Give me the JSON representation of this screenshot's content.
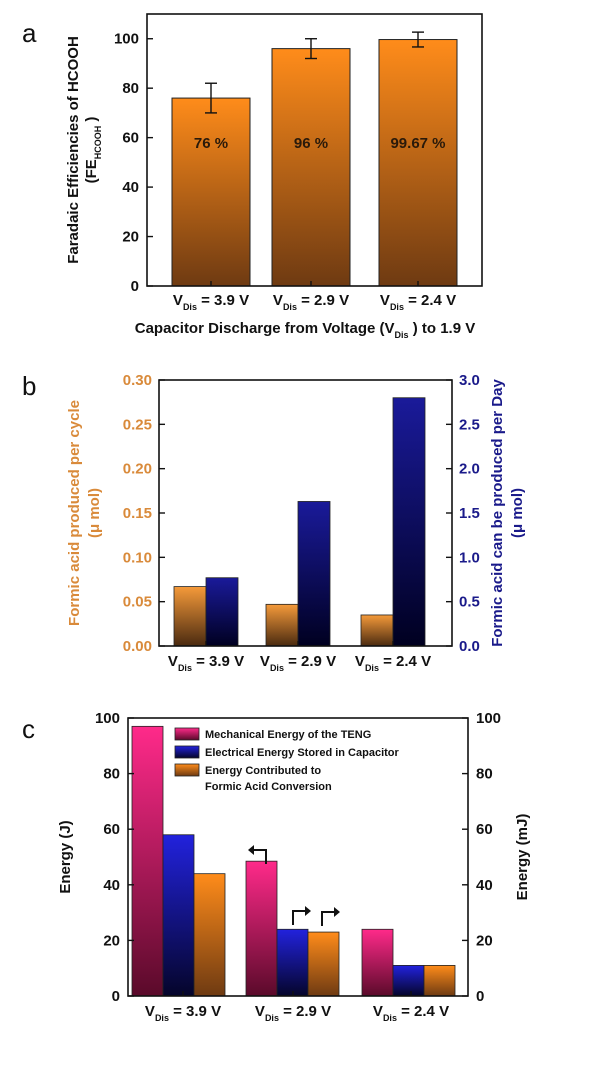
{
  "chart_data": [
    {
      "panel": "a",
      "type": "bar",
      "categories": [
        {
          "main": "V",
          "sub": "Dis",
          "rest": "= 3.9 V"
        },
        {
          "main": "V",
          "sub": "Dis",
          "rest": "= 2.9 V"
        },
        {
          "main": "V",
          "sub": "Dis",
          "rest": "= 2.4 V"
        }
      ],
      "values": [
        76,
        96,
        99.67
      ],
      "errors": [
        6,
        4,
        3
      ],
      "data_labels": [
        "76 %",
        "96 %",
        "99.67 %"
      ],
      "ylabel": "Faradaic Efficiencies of HCOOH",
      "ylabel2": {
        "main": "(FE",
        "sub": "HCOOH",
        "rest": ")"
      },
      "xlabel": {
        "main": "Capacitor Discharge from Voltage (V",
        "sub": "Dis",
        "rest": ") to 1.9 V"
      },
      "ylim": [
        0,
        110
      ],
      "yticks": [
        0,
        20,
        40,
        60,
        80,
        100
      ],
      "colors": {
        "top": "#ff8c1a",
        "bottom": "#6e3a12"
      }
    },
    {
      "panel": "b",
      "type": "bar",
      "categories": [
        {
          "main": "V",
          "sub": "Dis",
          "rest": "= 3.9 V"
        },
        {
          "main": "V",
          "sub": "Dis",
          "rest": "= 2.9 V"
        },
        {
          "main": "V",
          "sub": "Dis",
          "rest": "= 2.4 V"
        }
      ],
      "series": [
        {
          "axis": "left",
          "values": [
            0.067,
            0.047,
            0.035
          ],
          "colors": {
            "top": "#f59a3a",
            "bottom": "#4a2a10"
          }
        },
        {
          "axis": "right",
          "values": [
            0.77,
            1.63,
            2.8
          ],
          "colors": {
            "top": "#1a1a9a",
            "bottom": "#000020"
          }
        }
      ],
      "ylabel_left": "Formic acid produced per cycle",
      "ylabel_left2": "(μ mol)",
      "ylabel_right": "Formic acid can be produced  per Day",
      "ylabel_right2": "(μ mol)",
      "ylim_left": [
        0,
        0.3
      ],
      "ylim_right": [
        0,
        3.0
      ],
      "yticks_left": [
        "0.00",
        "0.05",
        "0.10",
        "0.15",
        "0.20",
        "0.25",
        "0.30"
      ],
      "yticks_right": [
        "0.0",
        "0.5",
        "1.0",
        "1.5",
        "2.0",
        "2.5",
        "3.0"
      ],
      "left_color": "#d98a3a",
      "right_color": "#1a1a8a"
    },
    {
      "panel": "c",
      "type": "bar",
      "categories": [
        {
          "main": "V",
          "sub": "Dis",
          "rest": "= 3.9 V"
        },
        {
          "main": "V",
          "sub": "Dis",
          "rest": "= 2.9 V"
        },
        {
          "main": "V",
          "sub": "Dis",
          "rest": "= 2.4 V"
        }
      ],
      "series": [
        {
          "name": "Mechanical Energy of the TENG",
          "axis": "left",
          "values": [
            97,
            48.5,
            24
          ],
          "colors": {
            "top": "#ff2a8a",
            "bottom": "#5a0a2a"
          }
        },
        {
          "name": "Electrical Energy Stored in Capacitor",
          "axis": "right",
          "values": [
            58,
            24,
            11
          ],
          "colors": {
            "top": "#2222dd",
            "bottom": "#05052a"
          }
        },
        {
          "name": "Energy Contributed to",
          "name2": "Formic Acid Conversion",
          "axis": "right",
          "values": [
            44,
            23,
            11
          ],
          "colors": {
            "top": "#ff8c1a",
            "bottom": "#6e3a12"
          }
        }
      ],
      "ylabel_left": "Energy (J)",
      "ylabel_right": "Energy (mJ)",
      "ylim": [
        0,
        100
      ],
      "yticks": [
        0,
        20,
        40,
        60,
        80,
        100
      ],
      "legend": "top-right"
    }
  ],
  "panels": {
    "a": "a",
    "b": "b",
    "c": "c"
  }
}
